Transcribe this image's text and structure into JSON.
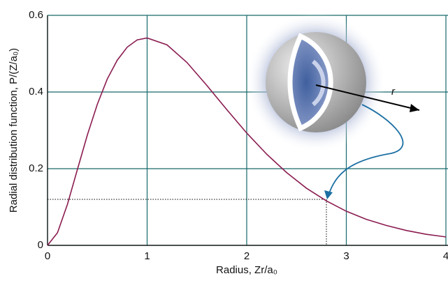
{
  "chart_data": {
    "type": "line",
    "xlabel": "Radius, Zr/a₀",
    "ylabel": "Radial distribution function, P/(Z/a₀)",
    "annotation": "r",
    "x": [
      0,
      0.1,
      0.2,
      0.3,
      0.4,
      0.5,
      0.6,
      0.7,
      0.8,
      0.9,
      1.0,
      1.2,
      1.4,
      1.6,
      1.8,
      2.0,
      2.2,
      2.4,
      2.6,
      2.8,
      3.0,
      3.2,
      3.4,
      3.6,
      3.8,
      4.0
    ],
    "series": [
      {
        "color": "#8a1c50",
        "values": [
          0,
          0.033,
          0.107,
          0.198,
          0.288,
          0.368,
          0.434,
          0.483,
          0.517,
          0.536,
          0.541,
          0.523,
          0.477,
          0.417,
          0.354,
          0.293,
          0.238,
          0.19,
          0.149,
          0.116,
          0.089,
          0.068,
          0.052,
          0.039,
          0.029,
          0.022
        ]
      }
    ],
    "marker": {
      "x": 2.8,
      "y": 0.12
    },
    "xlim": [
      0,
      4
    ],
    "ylim": [
      0,
      0.6
    ],
    "xticks": [
      0,
      1,
      2,
      3,
      4
    ],
    "yticks": [
      0,
      0.2,
      0.4,
      0.6
    ],
    "grid": true,
    "grid_color": "#17696a"
  }
}
